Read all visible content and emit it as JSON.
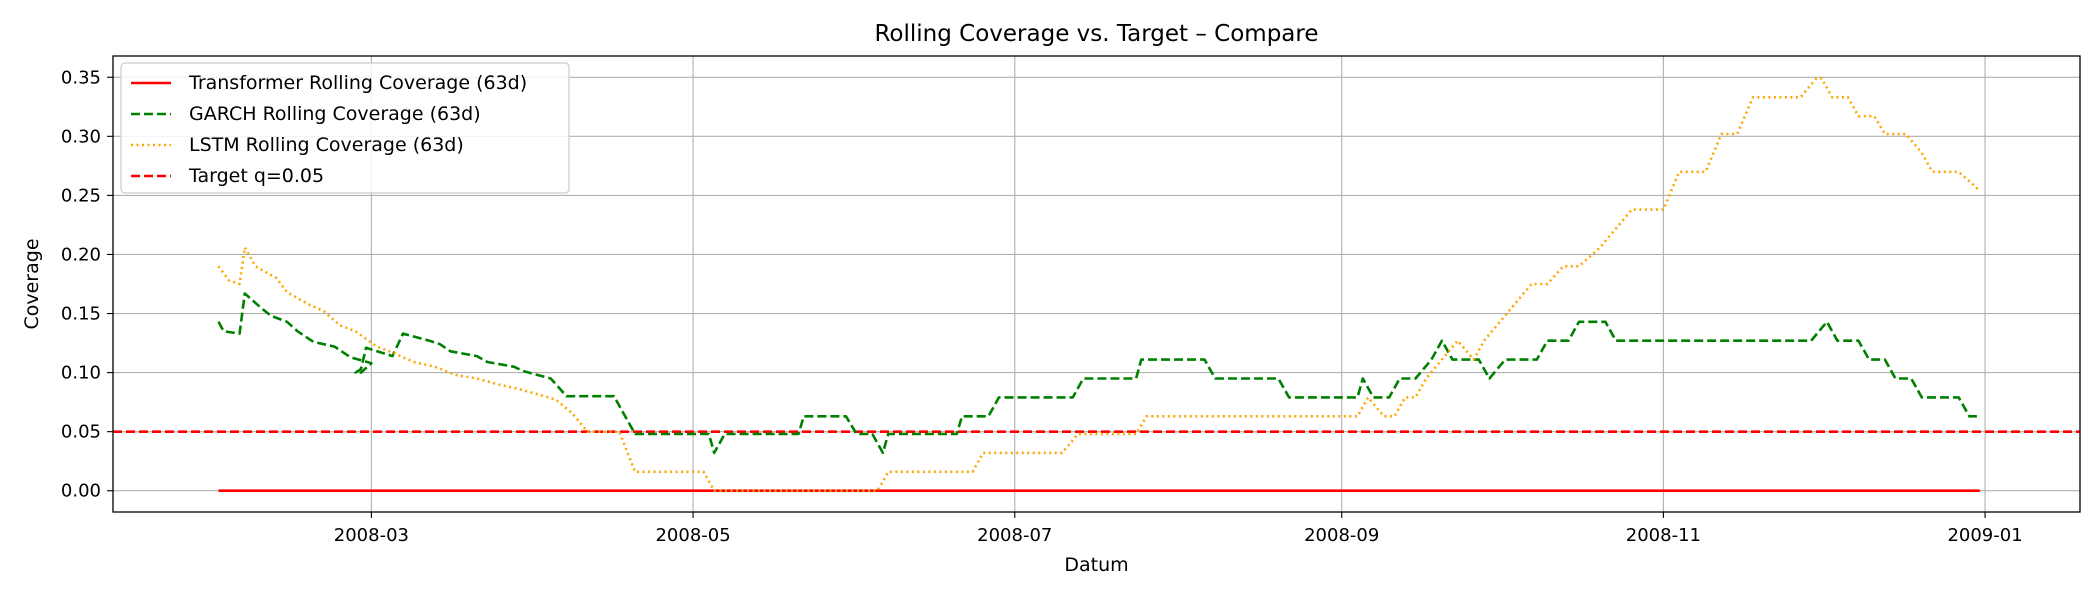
{
  "chart_data": {
    "type": "line",
    "title": "Rolling Coverage vs. Target – Compare",
    "xlabel": "Datum",
    "ylabel": "Coverage",
    "x_start": "2008-02-01",
    "xlim": [
      "2008-01-12",
      "2009-01-19"
    ],
    "ylim": [
      -0.018,
      0.368
    ],
    "grid": true,
    "legend_position": "top-left",
    "x_ticks": [
      {
        "date": "2008-03-01",
        "label": "2008-03"
      },
      {
        "date": "2008-05-01",
        "label": "2008-05"
      },
      {
        "date": "2008-07-01",
        "label": "2008-07"
      },
      {
        "date": "2008-09-01",
        "label": "2008-09"
      },
      {
        "date": "2008-11-01",
        "label": "2008-11"
      },
      {
        "date": "2009-01-01",
        "label": "2009-01"
      }
    ],
    "y_ticks": [
      {
        "value": 0.0,
        "label": "0.00"
      },
      {
        "value": 0.05,
        "label": "0.05"
      },
      {
        "value": 0.1,
        "label": "0.10"
      },
      {
        "value": 0.15,
        "label": "0.15"
      },
      {
        "value": 0.2,
        "label": "0.20"
      },
      {
        "value": 0.25,
        "label": "0.25"
      },
      {
        "value": 0.3,
        "label": "0.30"
      },
      {
        "value": 0.35,
        "label": "0.35"
      }
    ],
    "series": [
      {
        "name": "Transformer Rolling Coverage (63d)",
        "color": "#ff0000",
        "style": "solid",
        "points": [
          [
            "2008-02-01",
            0.0
          ],
          [
            "2008-12-31",
            0.0
          ]
        ]
      },
      {
        "name": "GARCH Rolling Coverage (63d)",
        "color": "#008000",
        "style": "dashed",
        "points": [
          [
            "2008-02-01",
            0.143
          ],
          [
            "2008-02-02",
            0.135
          ],
          [
            "2008-02-05",
            0.133
          ],
          [
            "2008-02-06",
            0.167
          ],
          [
            "2008-02-09",
            0.155
          ],
          [
            "2008-02-11",
            0.148
          ],
          [
            "2008-02-14",
            0.143
          ],
          [
            "2008-02-16",
            0.135
          ],
          [
            "2008-02-19",
            0.126
          ],
          [
            "2008-02-23",
            0.122
          ],
          [
            "2008-02-26",
            0.113
          ],
          [
            "2008-03-01",
            0.108
          ],
          [
            "2008-02-28",
            0.1
          ],
          [
            "2008-02-27",
            0.1
          ],
          [
            "2008-02-28",
            0.103
          ],
          [
            "2008-02-29",
            0.121
          ],
          [
            "2008-03-05",
            0.114
          ],
          [
            "2008-03-07",
            0.133
          ],
          [
            "2008-03-12",
            0.127
          ],
          [
            "2008-03-14",
            0.124
          ],
          [
            "2008-03-16",
            0.118
          ],
          [
            "2008-03-21",
            0.114
          ],
          [
            "2008-03-23",
            0.109
          ],
          [
            "2008-03-28",
            0.105
          ],
          [
            "2008-03-30",
            0.101
          ],
          [
            "2008-04-04",
            0.095
          ],
          [
            "2008-04-07",
            0.08
          ],
          [
            "2008-04-16",
            0.08
          ],
          [
            "2008-04-18",
            0.064
          ],
          [
            "2008-04-20",
            0.048
          ],
          [
            "2008-05-04",
            0.048
          ],
          [
            "2008-05-05",
            0.032
          ],
          [
            "2008-05-07",
            0.048
          ],
          [
            "2008-05-21",
            0.048
          ],
          [
            "2008-05-22",
            0.063
          ],
          [
            "2008-05-30",
            0.063
          ],
          [
            "2008-06-01",
            0.048
          ],
          [
            "2008-06-04",
            0.048
          ],
          [
            "2008-06-06",
            0.032
          ],
          [
            "2008-06-07",
            0.048
          ],
          [
            "2008-06-20",
            0.048
          ],
          [
            "2008-06-21",
            0.063
          ],
          [
            "2008-06-26",
            0.063
          ],
          [
            "2008-06-28",
            0.079
          ],
          [
            "2008-07-12",
            0.079
          ],
          [
            "2008-07-14",
            0.095
          ],
          [
            "2008-07-24",
            0.095
          ],
          [
            "2008-07-25",
            0.111
          ],
          [
            "2008-08-06",
            0.111
          ],
          [
            "2008-08-08",
            0.095
          ],
          [
            "2008-08-20",
            0.095
          ],
          [
            "2008-08-22",
            0.079
          ],
          [
            "2008-09-04",
            0.079
          ],
          [
            "2008-09-05",
            0.095
          ],
          [
            "2008-09-07",
            0.079
          ],
          [
            "2008-09-10",
            0.079
          ],
          [
            "2008-09-12",
            0.095
          ],
          [
            "2008-09-15",
            0.095
          ],
          [
            "2008-09-18",
            0.111
          ],
          [
            "2008-09-20",
            0.127
          ],
          [
            "2008-09-22",
            0.111
          ],
          [
            "2008-09-27",
            0.111
          ],
          [
            "2008-09-29",
            0.095
          ],
          [
            "2008-10-02",
            0.111
          ],
          [
            "2008-10-08",
            0.111
          ],
          [
            "2008-10-10",
            0.127
          ],
          [
            "2008-10-14",
            0.127
          ],
          [
            "2008-10-16",
            0.143
          ],
          [
            "2008-10-21",
            0.143
          ],
          [
            "2008-10-23",
            0.127
          ],
          [
            "2008-11-29",
            0.127
          ],
          [
            "2008-12-02",
            0.143
          ],
          [
            "2008-12-04",
            0.127
          ],
          [
            "2008-12-08",
            0.127
          ],
          [
            "2008-12-10",
            0.111
          ],
          [
            "2008-12-13",
            0.111
          ],
          [
            "2008-12-15",
            0.095
          ],
          [
            "2008-12-18",
            0.095
          ],
          [
            "2008-12-20",
            0.079
          ],
          [
            "2008-12-27",
            0.079
          ],
          [
            "2008-12-29",
            0.063
          ],
          [
            "2008-12-31",
            0.063
          ]
        ]
      },
      {
        "name": "LSTM Rolling Coverage (63d)",
        "color": "#ffa500",
        "style": "dotted",
        "points": [
          [
            "2008-02-01",
            0.19
          ],
          [
            "2008-02-03",
            0.178
          ],
          [
            "2008-02-05",
            0.175
          ],
          [
            "2008-02-06",
            0.206
          ],
          [
            "2008-02-08",
            0.19
          ],
          [
            "2008-02-12",
            0.18
          ],
          [
            "2008-02-14",
            0.168
          ],
          [
            "2008-02-18",
            0.158
          ],
          [
            "2008-02-21",
            0.152
          ],
          [
            "2008-02-24",
            0.14
          ],
          [
            "2008-02-27",
            0.135
          ],
          [
            "2008-03-02",
            0.122
          ],
          [
            "2008-03-05",
            0.117
          ],
          [
            "2008-03-09",
            0.109
          ],
          [
            "2008-03-13",
            0.105
          ],
          [
            "2008-03-17",
            0.098
          ],
          [
            "2008-03-21",
            0.095
          ],
          [
            "2008-03-25",
            0.09
          ],
          [
            "2008-03-29",
            0.086
          ],
          [
            "2008-04-02",
            0.081
          ],
          [
            "2008-04-05",
            0.077
          ],
          [
            "2008-04-08",
            0.066
          ],
          [
            "2008-04-11",
            0.05
          ],
          [
            "2008-04-17",
            0.05
          ],
          [
            "2008-04-20",
            0.016
          ],
          [
            "2008-05-03",
            0.016
          ],
          [
            "2008-05-05",
            0.0
          ],
          [
            "2008-06-05",
            0.0
          ],
          [
            "2008-06-07",
            0.016
          ],
          [
            "2008-06-23",
            0.016
          ],
          [
            "2008-06-25",
            0.032
          ],
          [
            "2008-07-10",
            0.032
          ],
          [
            "2008-07-13",
            0.048
          ],
          [
            "2008-07-24",
            0.048
          ],
          [
            "2008-07-26",
            0.063
          ],
          [
            "2008-09-04",
            0.063
          ],
          [
            "2008-09-06",
            0.079
          ],
          [
            "2008-09-09",
            0.063
          ],
          [
            "2008-09-11",
            0.063
          ],
          [
            "2008-09-13",
            0.079
          ],
          [
            "2008-09-15",
            0.079
          ],
          [
            "2008-09-17",
            0.095
          ],
          [
            "2008-09-20",
            0.111
          ],
          [
            "2008-09-23",
            0.127
          ],
          [
            "2008-09-26",
            0.111
          ],
          [
            "2008-09-28",
            0.127
          ],
          [
            "2008-10-01",
            0.143
          ],
          [
            "2008-10-04",
            0.159
          ],
          [
            "2008-10-07",
            0.175
          ],
          [
            "2008-10-10",
            0.175
          ],
          [
            "2008-10-13",
            0.19
          ],
          [
            "2008-10-16",
            0.19
          ],
          [
            "2008-10-20",
            0.206
          ],
          [
            "2008-10-23",
            0.222
          ],
          [
            "2008-10-26",
            0.238
          ],
          [
            "2008-11-01",
            0.238
          ],
          [
            "2008-11-04",
            0.27
          ],
          [
            "2008-11-09",
            0.27
          ],
          [
            "2008-11-12",
            0.302
          ],
          [
            "2008-11-15",
            0.302
          ],
          [
            "2008-11-18",
            0.333
          ],
          [
            "2008-11-27",
            0.333
          ],
          [
            "2008-11-30",
            0.349
          ],
          [
            "2008-12-01",
            0.349
          ],
          [
            "2008-12-03",
            0.333
          ],
          [
            "2008-12-06",
            0.333
          ],
          [
            "2008-12-08",
            0.317
          ],
          [
            "2008-12-11",
            0.317
          ],
          [
            "2008-12-13",
            0.302
          ],
          [
            "2008-12-17",
            0.302
          ],
          [
            "2008-12-20",
            0.286
          ],
          [
            "2008-12-22",
            0.27
          ],
          [
            "2008-12-27",
            0.27
          ],
          [
            "2008-12-31",
            0.254
          ]
        ]
      },
      {
        "name": "Target q=0.05",
        "color": "#ff0000",
        "style": "dashed",
        "hline": 0.05
      }
    ]
  }
}
